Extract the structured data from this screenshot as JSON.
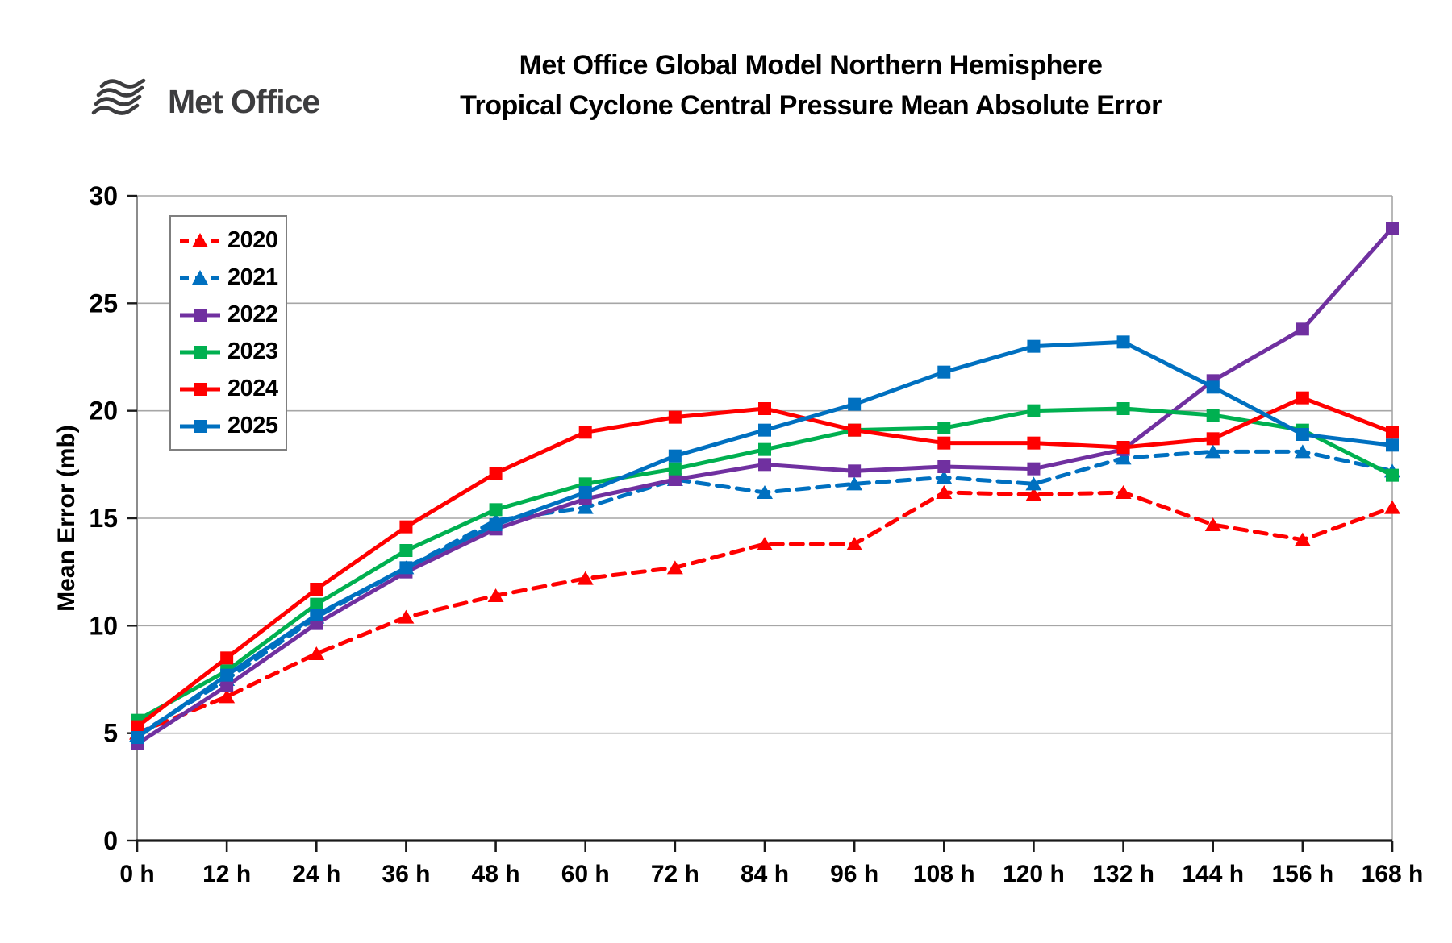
{
  "logo": {
    "icon": "met-office-waves-icon",
    "text": "Met Office",
    "color": "#3d3d3f"
  },
  "title": {
    "line1": "Met Office Global Model Northern Hemisphere",
    "line2": "Tropical Cyclone Central Pressure Mean Absolute Error"
  },
  "chart_data": {
    "type": "line",
    "title": "Met Office Global Model Northern Hemisphere Tropical Cyclone Central Pressure Mean Absolute Error",
    "xlabel": "",
    "ylabel": "Mean Error (mb)",
    "ylim": [
      0,
      30
    ],
    "ytick_step": 5,
    "grid": true,
    "legend_position": "upper-left-inside",
    "x_hours": [
      0,
      12,
      24,
      36,
      48,
      60,
      72,
      84,
      96,
      108,
      120,
      132,
      144,
      156,
      168
    ],
    "x_tick_labels": [
      "0 h",
      "12 h",
      "24 h",
      "36 h",
      "48 h",
      "60 h",
      "72 h",
      "84 h",
      "96 h",
      "108 h",
      "120 h",
      "132 h",
      "144 h",
      "156 h",
      "168 h"
    ],
    "series": [
      {
        "name": "2020",
        "color": "#FF0000",
        "line_style": "dashed",
        "marker": "triangle",
        "values": [
          5.0,
          6.7,
          8.7,
          10.4,
          11.4,
          12.2,
          12.7,
          13.8,
          13.8,
          16.2,
          16.1,
          16.2,
          14.7,
          14.0,
          15.5
        ]
      },
      {
        "name": "2021",
        "color": "#0070C0",
        "line_style": "dashed",
        "marker": "triangle",
        "values": [
          4.9,
          7.5,
          10.4,
          12.7,
          14.9,
          15.5,
          16.8,
          16.2,
          16.6,
          16.9,
          16.6,
          17.8,
          18.1,
          18.1,
          17.2
        ]
      },
      {
        "name": "2022",
        "color": "#7030A0",
        "line_style": "solid",
        "marker": "square",
        "values": [
          4.5,
          7.2,
          10.1,
          12.5,
          14.5,
          15.9,
          16.8,
          17.5,
          17.2,
          17.4,
          17.3,
          18.2,
          21.4,
          23.8,
          28.5
        ]
      },
      {
        "name": "2023",
        "color": "#00B050",
        "line_style": "solid",
        "marker": "square",
        "values": [
          5.6,
          7.9,
          11.0,
          13.5,
          15.4,
          16.6,
          17.3,
          18.2,
          19.1,
          19.2,
          20.0,
          20.1,
          19.8,
          19.1,
          17.0
        ]
      },
      {
        "name": "2024",
        "color": "#FF0000",
        "line_style": "solid",
        "marker": "square",
        "values": [
          5.3,
          8.5,
          11.7,
          14.6,
          17.1,
          19.0,
          19.7,
          20.1,
          19.1,
          18.5,
          18.5,
          18.3,
          18.7,
          20.6,
          19.0
        ]
      },
      {
        "name": "2025",
        "color": "#0070C0",
        "line_style": "solid",
        "marker": "square",
        "values": [
          4.8,
          7.7,
          10.5,
          12.7,
          14.7,
          16.2,
          17.9,
          19.1,
          20.3,
          21.8,
          23.0,
          23.2,
          21.1,
          18.9,
          18.4
        ]
      }
    ]
  }
}
